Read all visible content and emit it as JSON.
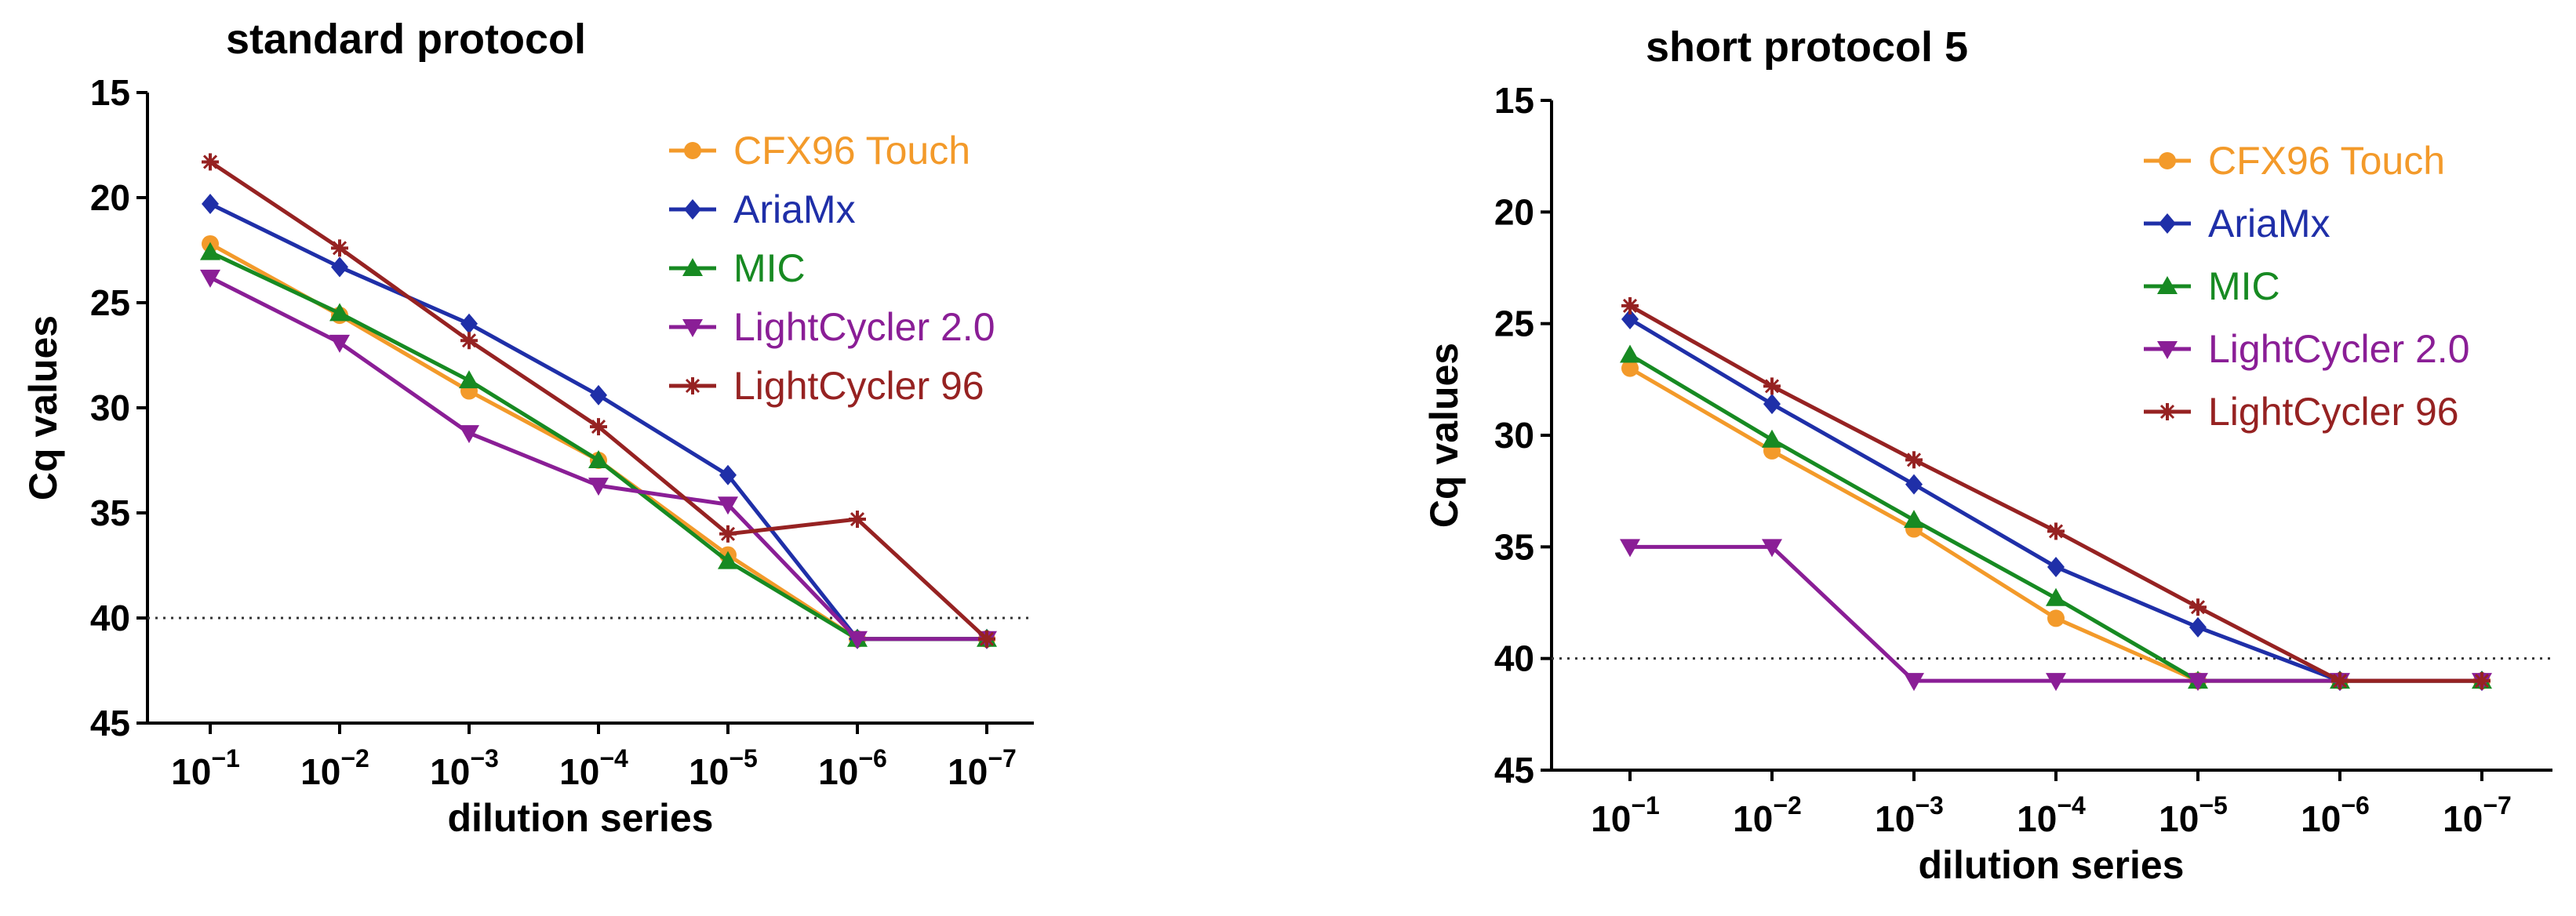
{
  "chart_data": [
    {
      "type": "line",
      "title": "standard protocol",
      "xlabel": "dilution series",
      "ylabel": "Cq values",
      "ylim": [
        45,
        15
      ],
      "y_inverted": true,
      "yticks": [
        "15",
        "20",
        "25",
        "30",
        "35",
        "40",
        "45"
      ],
      "categories": [
        "10-1",
        "10-2",
        "10-3",
        "10-4",
        "10-5",
        "10-6",
        "10-7"
      ],
      "category_labels": [
        {
          "base": "10",
          "exp": "-1"
        },
        {
          "base": "10",
          "exp": "-2"
        },
        {
          "base": "10",
          "exp": "-3"
        },
        {
          "base": "10",
          "exp": "-4"
        },
        {
          "base": "10",
          "exp": "-5"
        },
        {
          "base": "10",
          "exp": "-6"
        },
        {
          "base": "10",
          "exp": "-7"
        }
      ],
      "threshold": 40,
      "legend_position": "top-right",
      "series": [
        {
          "name": "CFX96 Touch",
          "color": "#f39a2a",
          "marker": "circle",
          "values": [
            22.2,
            25.6,
            29.2,
            32.5,
            37.0,
            41.0,
            41.0
          ]
        },
        {
          "name": "AriaMx",
          "color": "#1f2fa8",
          "marker": "diamond",
          "values": [
            20.3,
            23.3,
            26.0,
            29.4,
            33.2,
            41.0,
            41.0
          ]
        },
        {
          "name": "MIC",
          "color": "#178a22",
          "marker": "triangle-up",
          "values": [
            22.6,
            25.5,
            28.7,
            32.5,
            37.3,
            41.0,
            41.0
          ]
        },
        {
          "name": "LightCycler 2.0",
          "color": "#8a1e96",
          "marker": "triangle-down",
          "values": [
            23.8,
            26.9,
            31.2,
            33.7,
            34.6,
            41.0,
            41.0
          ]
        },
        {
          "name": "LightCycler 96",
          "color": "#962222",
          "marker": "star",
          "values": [
            18.3,
            22.4,
            26.8,
            30.9,
            36.0,
            35.3,
            41.0
          ]
        }
      ]
    },
    {
      "type": "line",
      "title": "short protocol 5",
      "xlabel": "dilution series",
      "ylabel": "Cq values",
      "ylim": [
        45,
        15
      ],
      "y_inverted": true,
      "yticks": [
        "15",
        "20",
        "25",
        "30",
        "35",
        "40",
        "45"
      ],
      "categories": [
        "10-1",
        "10-2",
        "10-3",
        "10-4",
        "10-5",
        "10-6",
        "10-7"
      ],
      "category_labels": [
        {
          "base": "10",
          "exp": "-1"
        },
        {
          "base": "10",
          "exp": "-2"
        },
        {
          "base": "10",
          "exp": "-3"
        },
        {
          "base": "10",
          "exp": "-4"
        },
        {
          "base": "10",
          "exp": "-5"
        },
        {
          "base": "10",
          "exp": "-6"
        },
        {
          "base": "10",
          "exp": "-7"
        }
      ],
      "threshold": 40,
      "legend_position": "top-right",
      "series": [
        {
          "name": "CFX96 Touch",
          "color": "#f39a2a",
          "marker": "circle",
          "values": [
            27.0,
            30.7,
            34.2,
            38.2,
            41.0,
            41.0,
            41.0
          ]
        },
        {
          "name": "AriaMx",
          "color": "#1f2fa8",
          "marker": "diamond",
          "values": [
            24.8,
            28.6,
            32.2,
            35.9,
            38.6,
            41.0,
            41.0
          ]
        },
        {
          "name": "MIC",
          "color": "#178a22",
          "marker": "triangle-up",
          "values": [
            26.4,
            30.2,
            33.8,
            37.3,
            41.0,
            41.0,
            41.0
          ]
        },
        {
          "name": "LightCycler 2.0",
          "color": "#8a1e96",
          "marker": "triangle-down",
          "values": [
            35.0,
            35.0,
            41.0,
            41.0,
            41.0,
            41.0,
            41.0
          ]
        },
        {
          "name": "LightCycler 96",
          "color": "#962222",
          "marker": "star",
          "values": [
            24.2,
            27.8,
            31.1,
            34.3,
            37.7,
            41.0,
            41.0
          ]
        }
      ]
    }
  ]
}
